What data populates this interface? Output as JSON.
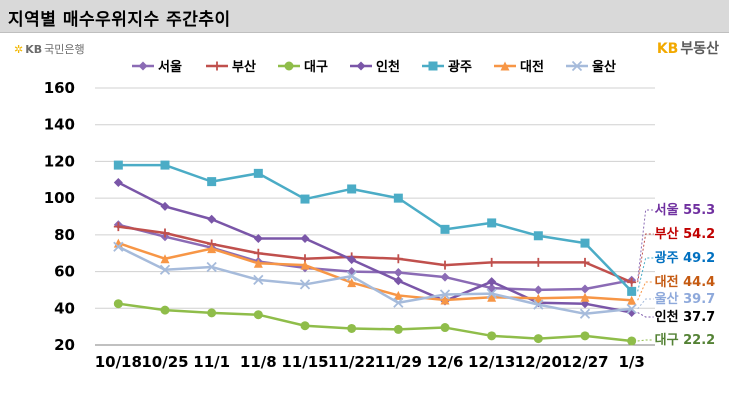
{
  "title": "지역별 매수우위지수 주간추이",
  "logo_left": {
    "star": "✲",
    "kb": "KB",
    "text": "국민은행"
  },
  "logo_right": {
    "kb": "KB",
    "text": "부동산"
  },
  "chart_data": {
    "type": "line",
    "categories": [
      "10/18",
      "10/25",
      "11/1",
      "11/8",
      "11/15",
      "11/22",
      "11/29",
      "12/6",
      "12/13",
      "12/20",
      "12/27",
      "1/3"
    ],
    "ylim": [
      20,
      160
    ],
    "yticks": [
      20,
      40,
      60,
      80,
      100,
      120,
      140,
      160
    ],
    "grid": true,
    "legend_position": "top",
    "series": [
      {
        "name": "서울",
        "color": "#8b6bb5",
        "marker": "diamond",
        "values": [
          85.5,
          79,
          73,
          65.5,
          62,
          60,
          59.5,
          57,
          51,
          50,
          50.5,
          55.3
        ],
        "end_label": "서울 55.3"
      },
      {
        "name": "부산",
        "color": "#c0504d",
        "marker": "plus",
        "values": [
          84.5,
          81,
          75,
          70,
          67,
          68,
          67,
          63.5,
          65,
          65,
          65,
          54.2
        ],
        "end_label": "부산 54.2"
      },
      {
        "name": "대구",
        "color": "#8fbd4a",
        "marker": "circle",
        "values": [
          42.5,
          39,
          37.5,
          36.5,
          30.5,
          29,
          28.5,
          29.5,
          25,
          23.5,
          25,
          22.2
        ],
        "end_label": "대구 22.2"
      },
      {
        "name": "인천",
        "color": "#7a56a8",
        "marker": "diamond",
        "values": [
          108.5,
          95.5,
          88.5,
          78,
          78,
          66.5,
          55,
          44,
          54.5,
          43,
          42.5,
          37.7
        ],
        "end_label": "인천 37.7"
      },
      {
        "name": "광주",
        "color": "#4bacc6",
        "marker": "square",
        "values": [
          118,
          118,
          109,
          113.5,
          99.5,
          105,
          100,
          83,
          86.5,
          79.5,
          75.5,
          49.2
        ],
        "end_label": "광주 49.2"
      },
      {
        "name": "대전",
        "color": "#f79646",
        "marker": "triangle",
        "values": [
          75.5,
          67,
          72.5,
          64.5,
          63.5,
          54,
          47,
          44.5,
          46,
          45.5,
          46,
          44.4
        ],
        "end_label": "대전 44.4"
      },
      {
        "name": "울산",
        "color": "#a6bbdb",
        "marker": "x",
        "values": [
          73.5,
          61,
          62.5,
          55.5,
          53,
          57.5,
          43,
          47.5,
          48,
          42,
          37,
          39.7
        ],
        "end_label": "울산 39.7"
      }
    ]
  }
}
